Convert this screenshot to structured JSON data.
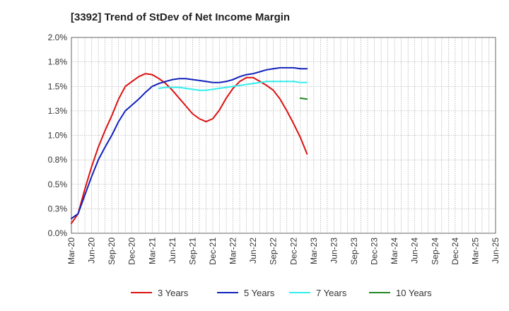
{
  "chart_data": {
    "type": "line",
    "title": "[3392]  Trend of StDev of Net Income Margin",
    "xlabel": "",
    "ylabel": "",
    "x_ticks": [
      "Mar-20",
      "Jun-20",
      "Sep-20",
      "Dec-20",
      "Mar-21",
      "Jun-21",
      "Sep-21",
      "Dec-21",
      "Mar-22",
      "Jun-22",
      "Sep-22",
      "Dec-22",
      "Mar-23",
      "Jun-23",
      "Sep-23",
      "Dec-23",
      "Mar-24",
      "Jun-24",
      "Sep-24",
      "Dec-24",
      "Mar-25",
      "Jun-25"
    ],
    "y_ticks": [
      "0.0%",
      "0.3%",
      "0.5%",
      "0.8%",
      "1.0%",
      "1.3%",
      "1.5%",
      "1.8%",
      "2.0%"
    ],
    "y_tick_values": [
      0,
      0.25,
      0.5,
      0.75,
      1.0,
      1.25,
      1.5,
      1.75,
      2.0
    ],
    "ylim": [
      0,
      2.0
    ],
    "grid": true,
    "legend_position": "bottom",
    "series": [
      {
        "name": "3 Years",
        "color": "#dd1111",
        "start_index": 0,
        "values": [
          0.1,
          0.2,
          0.45,
          0.68,
          0.88,
          1.05,
          1.2,
          1.37,
          1.5,
          1.55,
          1.6,
          1.63,
          1.62,
          1.58,
          1.53,
          1.46,
          1.38,
          1.3,
          1.22,
          1.17,
          1.14,
          1.17,
          1.26,
          1.38,
          1.48,
          1.55,
          1.59,
          1.59,
          1.55,
          1.51,
          1.46,
          1.37,
          1.25,
          1.12,
          0.98,
          0.81
        ]
      },
      {
        "name": "5 Years",
        "color": "#1122bb",
        "start_index": 0,
        "values": [
          0.15,
          0.2,
          0.39,
          0.58,
          0.75,
          0.88,
          1.0,
          1.14,
          1.25,
          1.31,
          1.37,
          1.44,
          1.5,
          1.53,
          1.55,
          1.57,
          1.58,
          1.58,
          1.57,
          1.56,
          1.55,
          1.54,
          1.54,
          1.55,
          1.57,
          1.6,
          1.62,
          1.63,
          1.65,
          1.67,
          1.68,
          1.69,
          1.69,
          1.69,
          1.68,
          1.68
        ]
      },
      {
        "name": "7 Years",
        "color": "#33eeee",
        "start_index": 13,
        "values": [
          1.48,
          1.49,
          1.49,
          1.49,
          1.48,
          1.47,
          1.46,
          1.46,
          1.47,
          1.48,
          1.49,
          1.5,
          1.51,
          1.52,
          1.53,
          1.54,
          1.55,
          1.55,
          1.55,
          1.55,
          1.55,
          1.54,
          1.54
        ]
      },
      {
        "name": "10 Years",
        "color": "#228822",
        "start_index": 34,
        "values": [
          1.38,
          1.37
        ]
      }
    ]
  }
}
